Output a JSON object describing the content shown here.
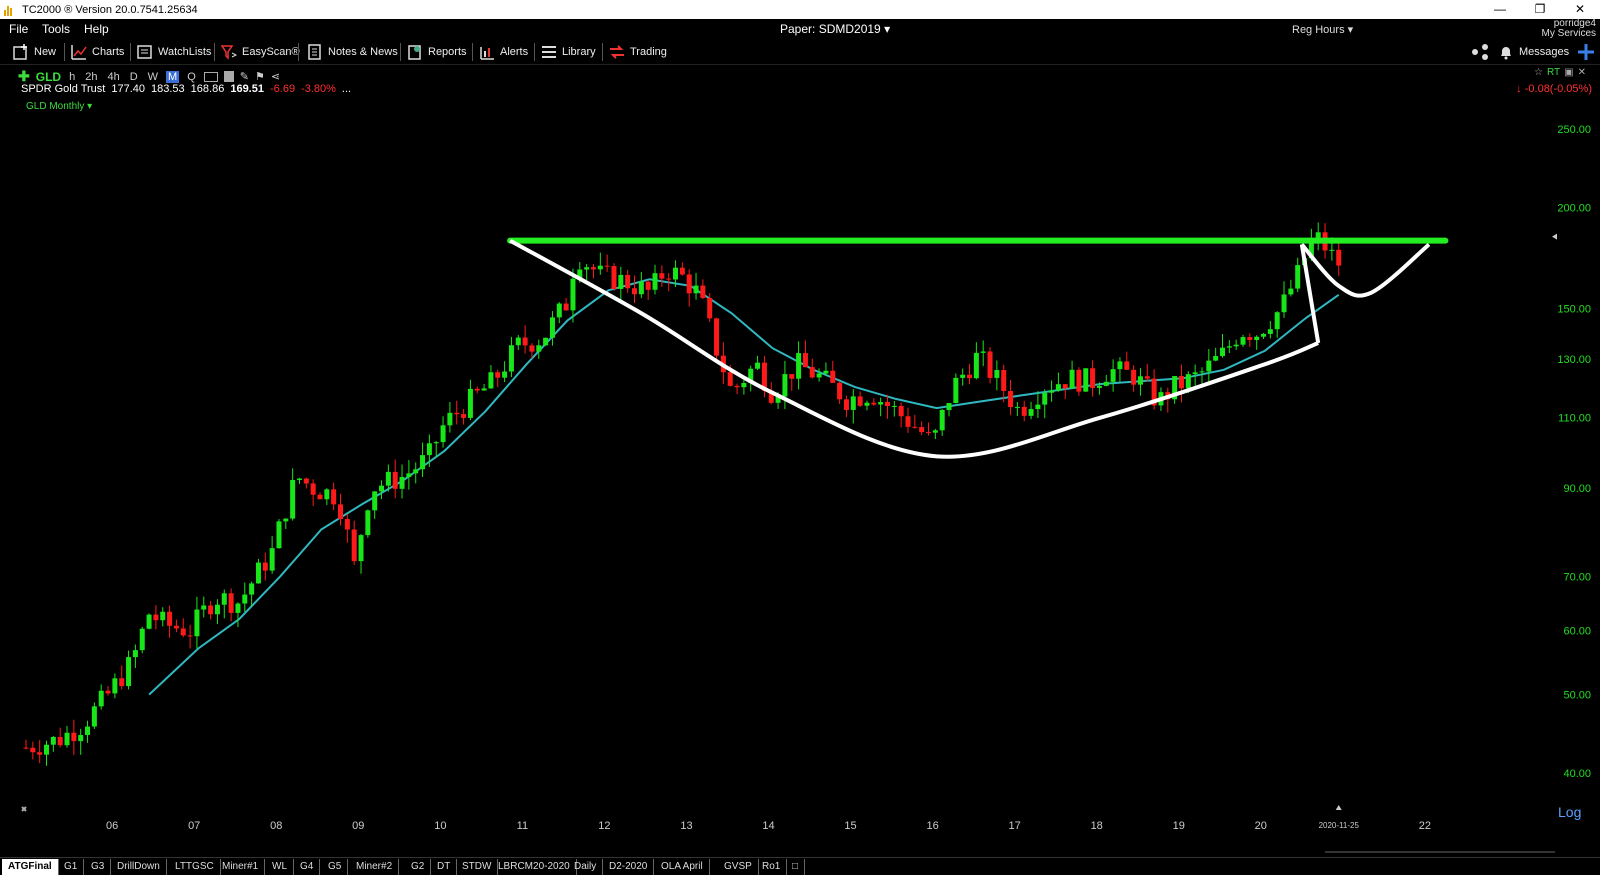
{
  "window": {
    "title": "TC2000 ® Version 20.0.7541.25634"
  },
  "menu": {
    "items": [
      "File",
      "Tools",
      "Help"
    ],
    "paper": "Paper: SDMD2019",
    "session": "Reg Hours",
    "user_name": "porridge4",
    "user_services": "My Services"
  },
  "toolbar": {
    "new": "New",
    "charts": "Charts",
    "watchlists": "WatchLists",
    "easyscan": "EasyScan®",
    "notes": "Notes & News",
    "reports": "Reports",
    "alerts": "Alerts",
    "library": "Library",
    "trading": "Trading",
    "messages": "Messages"
  },
  "chart_header": {
    "symbol": "GLD",
    "timeframes": [
      "h",
      "2h",
      "4h",
      "D",
      "W",
      "M",
      "Q"
    ],
    "active_timeframe": "M",
    "name": "SPDR Gold Trust",
    "open": "177.40",
    "high": "183.53",
    "low": "168.86",
    "last": "169.51",
    "change": "-6.69",
    "change_pct": "-3.80%",
    "right_change": "-0.08(-0.05%)",
    "subtitle": "GLD Monthly"
  },
  "colors": {
    "up": "#19e619",
    "down": "#ff1a1a",
    "ma": "#2fb8c0",
    "resistance": "#22ee22",
    "pattern": "#ffffff",
    "axis_text": "#22dd22"
  },
  "chart_data": {
    "type": "candlestick",
    "scale": "log",
    "ylim": [
      38,
      270
    ],
    "yticks": [
      "250.00",
      "200.00",
      "150.00",
      "130.00",
      "110.00",
      "90.00",
      "70.00",
      "60.00",
      "50.00",
      "40.00"
    ],
    "x_labels": [
      "06",
      "07",
      "08",
      "09",
      "10",
      "11",
      "12",
      "13",
      "14",
      "15",
      "16",
      "17",
      "18",
      "19",
      "20",
      "2020-11-25",
      "22"
    ],
    "x_range": [
      2004.9,
      2022.5
    ],
    "scale_label": "Log",
    "anchors": [
      [
        2004.9,
        43
      ],
      [
        2005.3,
        44
      ],
      [
        2005.6,
        46
      ],
      [
        2005.9,
        50
      ],
      [
        2006.2,
        55
      ],
      [
        2006.4,
        63
      ],
      [
        2006.6,
        61
      ],
      [
        2006.9,
        60
      ],
      [
        2007.2,
        66
      ],
      [
        2007.5,
        65
      ],
      [
        2007.9,
        75
      ],
      [
        2008.2,
        93
      ],
      [
        2008.4,
        90
      ],
      [
        2008.7,
        88
      ],
      [
        2008.9,
        72
      ],
      [
        2009.1,
        90
      ],
      [
        2009.5,
        93
      ],
      [
        2009.8,
        98
      ],
      [
        2010.0,
        108
      ],
      [
        2010.3,
        115
      ],
      [
        2010.6,
        122
      ],
      [
        2010.9,
        135
      ],
      [
        2011.2,
        138
      ],
      [
        2011.5,
        153
      ],
      [
        2011.6,
        175
      ],
      [
        2011.9,
        165
      ],
      [
        2012.2,
        162
      ],
      [
        2012.5,
        157
      ],
      [
        2012.7,
        168
      ],
      [
        2012.9,
        164
      ],
      [
        2013.1,
        156
      ],
      [
        2013.3,
        135
      ],
      [
        2013.5,
        118
      ],
      [
        2013.8,
        128
      ],
      [
        2014.0,
        118
      ],
      [
        2014.3,
        128
      ],
      [
        2014.6,
        123
      ],
      [
        2014.9,
        116
      ],
      [
        2015.2,
        118
      ],
      [
        2015.5,
        112
      ],
      [
        2015.8,
        106
      ],
      [
        2015.95,
        102
      ],
      [
        2016.2,
        120
      ],
      [
        2016.5,
        131
      ],
      [
        2016.8,
        120
      ],
      [
        2017.0,
        112
      ],
      [
        2017.3,
        120
      ],
      [
        2017.6,
        123
      ],
      [
        2017.9,
        122
      ],
      [
        2018.1,
        126
      ],
      [
        2018.4,
        124
      ],
      [
        2018.7,
        115
      ],
      [
        2018.9,
        120
      ],
      [
        2019.2,
        124
      ],
      [
        2019.5,
        132
      ],
      [
        2019.7,
        141
      ],
      [
        2019.9,
        140
      ],
      [
        2020.2,
        150
      ],
      [
        2020.4,
        165
      ],
      [
        2020.6,
        185
      ],
      [
        2020.75,
        178
      ],
      [
        2020.9,
        169.5
      ]
    ],
    "ma_anchors": [
      [
        2006.4,
        50
      ],
      [
        2007.0,
        57
      ],
      [
        2007.5,
        62
      ],
      [
        2008.0,
        70
      ],
      [
        2008.5,
        80
      ],
      [
        2009.0,
        86
      ],
      [
        2009.5,
        92
      ],
      [
        2010.0,
        100
      ],
      [
        2010.5,
        112
      ],
      [
        2011.0,
        128
      ],
      [
        2011.5,
        145
      ],
      [
        2012.0,
        158
      ],
      [
        2012.5,
        163
      ],
      [
        2013.0,
        160
      ],
      [
        2013.5,
        148
      ],
      [
        2014.0,
        134
      ],
      [
        2014.5,
        126
      ],
      [
        2015.0,
        120
      ],
      [
        2015.5,
        116
      ],
      [
        2016.0,
        113
      ],
      [
        2016.5,
        115
      ],
      [
        2017.0,
        117
      ],
      [
        2017.5,
        119
      ],
      [
        2018.0,
        121
      ],
      [
        2018.5,
        122
      ],
      [
        2019.0,
        123
      ],
      [
        2019.5,
        126
      ],
      [
        2020.0,
        133
      ],
      [
        2020.5,
        146
      ],
      [
        2020.9,
        156
      ]
    ],
    "resistance": {
      "x": [
        2010.8,
        2022.2
      ],
      "value": 182
    },
    "cup": [
      [
        2010.8,
        182
      ],
      [
        2012.4,
        148
      ],
      [
        2014.0,
        118
      ],
      [
        2016.0,
        98.5
      ],
      [
        2018.0,
        110
      ],
      [
        2020.0,
        128
      ],
      [
        2020.65,
        136
      ]
    ],
    "handle": [
      [
        2020.45,
        180
      ],
      [
        2020.65,
        136
      ]
    ],
    "handle_curve": [
      [
        2020.45,
        180
      ],
      [
        2020.9,
        160
      ],
      [
        2021.3,
        157
      ],
      [
        2022.0,
        180
      ]
    ]
  },
  "tabs": [
    "ATGFinal",
    "G1",
    "G3",
    "DrillDown",
    "LTTGSC",
    "Miner#1",
    "WL",
    "G4",
    "G5",
    "Miner#2",
    "G2",
    "DT",
    "STDW",
    "LBRCM20-2020",
    "Daily",
    "D2-2020",
    "OLA April",
    "GVSP",
    "Ro1"
  ]
}
